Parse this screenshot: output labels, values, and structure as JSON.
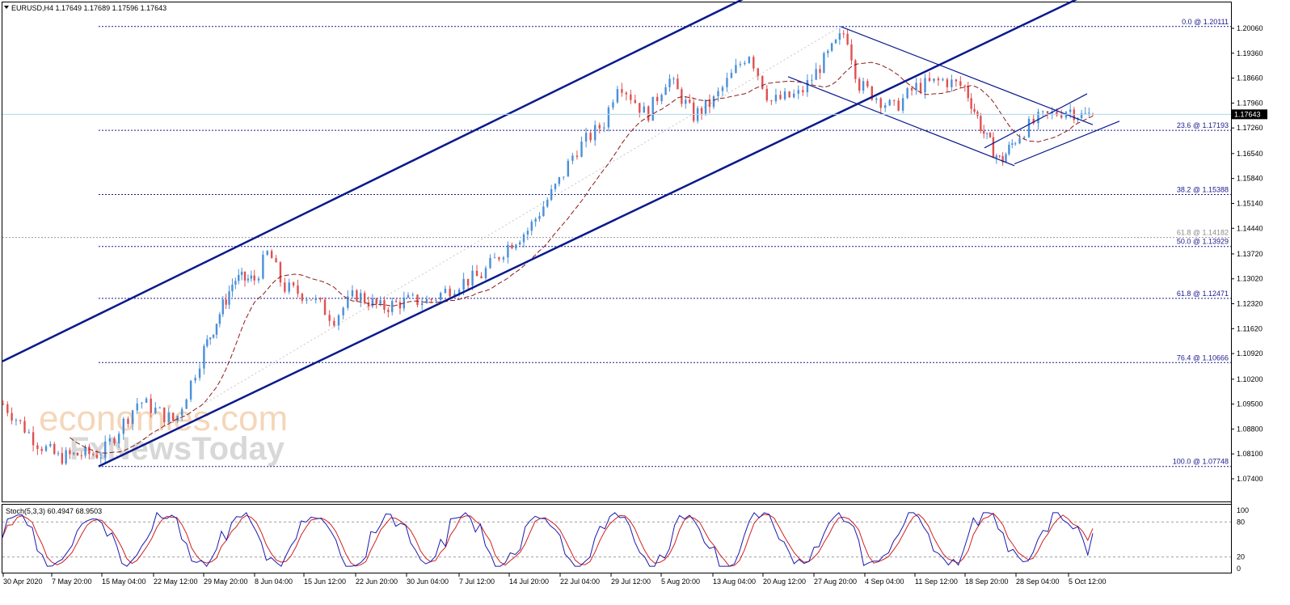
{
  "chart_data": {
    "type": "candlestick",
    "symbol_line": "EURUSD,H4  1.17649 1.17689 1.17596 1.17643",
    "ohlc": {
      "open": 1.17649,
      "high": 1.17689,
      "low": 1.17596,
      "close": 1.17643
    },
    "current_price_label": "1.17643",
    "price_axis": {
      "ylim": [
        1.074,
        1.205
      ],
      "ticks": [
        "1.20060",
        "1.19360",
        "1.18660",
        "1.17960",
        "1.17260",
        "1.16540",
        "1.15840",
        "1.15140",
        "1.14440",
        "1.13720",
        "1.13020",
        "1.12320",
        "1.11620",
        "1.10920",
        "1.10200",
        "1.09500",
        "1.08800",
        "1.08100",
        "1.07400"
      ]
    },
    "time_axis": {
      "labels": [
        "30 Apr 2020",
        "7 May 20:00",
        "15 May 04:00",
        "22 May 12:00",
        "29 May 20:00",
        "8 Jun 04:00",
        "15 Jun 12:00",
        "22 Jun 20:00",
        "30 Jun 04:00",
        "7 Jul 12:00",
        "14 Jul 20:00",
        "22 Jul 04:00",
        "29 Jul 12:00",
        "5 Aug 20:00",
        "13 Aug 04:00",
        "20 Aug 12:00",
        "27 Aug 20:00",
        "4 Sep 04:00",
        "11 Sep 12:00",
        "18 Sep 20:00",
        "28 Sep 04:00",
        "5 Oct 12:00"
      ]
    },
    "fibonacci_levels": [
      {
        "label": "0.0 @ 1.20111",
        "price": 1.20111
      },
      {
        "label": "23.6 @ 1.17193",
        "price": 1.17193
      },
      {
        "label": "38.2 @ 1.15388",
        "price": 1.15388
      },
      {
        "label": "61.8 @ 1.14182",
        "price": 1.14182,
        "style": "gray"
      },
      {
        "label": "50.0 @ 1.13929",
        "price": 1.13929
      },
      {
        "label": "61.8 @ 1.12471",
        "price": 1.12471
      },
      {
        "label": "76.4 @ 1.10666",
        "price": 1.10666
      },
      {
        "label": "100.0 @ 1.07748",
        "price": 1.07748
      }
    ],
    "key_closes": [
      [
        "30 Apr",
        1.095
      ],
      [
        "5 May",
        1.084
      ],
      [
        "8 May",
        1.08
      ],
      [
        "12 May",
        1.081
      ],
      [
        "15 May",
        1.081
      ],
      [
        "20 May",
        1.096
      ],
      [
        "25 May",
        1.09
      ],
      [
        "29 May",
        1.11
      ],
      [
        "4 Jun",
        1.13
      ],
      [
        "8 Jun",
        1.13
      ],
      [
        "10 Jun",
        1.138
      ],
      [
        "12 Jun",
        1.128
      ],
      [
        "16 Jun",
        1.125
      ],
      [
        "19 Jun",
        1.119
      ],
      [
        "22 Jun",
        1.126
      ],
      [
        "26 Jun",
        1.122
      ],
      [
        "30 Jun",
        1.124
      ],
      [
        "3 Jul",
        1.124
      ],
      [
        "7 Jul",
        1.129
      ],
      [
        "10 Jul",
        1.131
      ],
      [
        "14 Jul",
        1.14
      ],
      [
        "17 Jul",
        1.144
      ],
      [
        "22 Jul",
        1.158
      ],
      [
        "24 Jul",
        1.166
      ],
      [
        "28 Jul",
        1.174
      ],
      [
        "30 Jul",
        1.186
      ],
      [
        "3 Aug",
        1.176
      ],
      [
        "6 Aug",
        1.187
      ],
      [
        "10 Aug",
        1.176
      ],
      [
        "13 Aug",
        1.18
      ],
      [
        "18 Aug",
        1.194
      ],
      [
        "21 Aug",
        1.18
      ],
      [
        "25 Aug",
        1.182
      ],
      [
        "28 Aug",
        1.19
      ],
      [
        "1 Sep",
        1.2
      ],
      [
        "3 Sep",
        1.185
      ],
      [
        "8 Sep",
        1.178
      ],
      [
        "11 Sep",
        1.184
      ],
      [
        "15 Sep",
        1.186
      ],
      [
        "18 Sep",
        1.184
      ],
      [
        "22 Sep",
        1.17
      ],
      [
        "25 Sep",
        1.163
      ],
      [
        "29 Sep",
        1.172
      ],
      [
        "1 Oct",
        1.175
      ],
      [
        "5 Oct",
        1.178
      ],
      [
        "7 Oct",
        1.176
      ],
      [
        "9 Oct",
        1.1764
      ]
    ],
    "oscillator": {
      "label": "Stoch(5,3,3) 60.4947 68.9503",
      "k": 60.4947,
      "d": 68.9503,
      "ylim": [
        0,
        100
      ],
      "ticks": [
        "100",
        "80",
        "20",
        "0"
      ],
      "levels": [
        80,
        20
      ]
    },
    "colors": {
      "bull": "#4a90d9",
      "bear": "#e05050",
      "channel": "#0a1a8c",
      "ma": "#8b1a1a",
      "fib": "#1a1a8c",
      "stoch_main": "#1a1ab0",
      "stoch_signal": "#d02020",
      "price_line": "#a8d8f0"
    },
    "grid": false,
    "watermark": {
      "line1": "economies.com",
      "line2": "FxNewsToday"
    }
  }
}
